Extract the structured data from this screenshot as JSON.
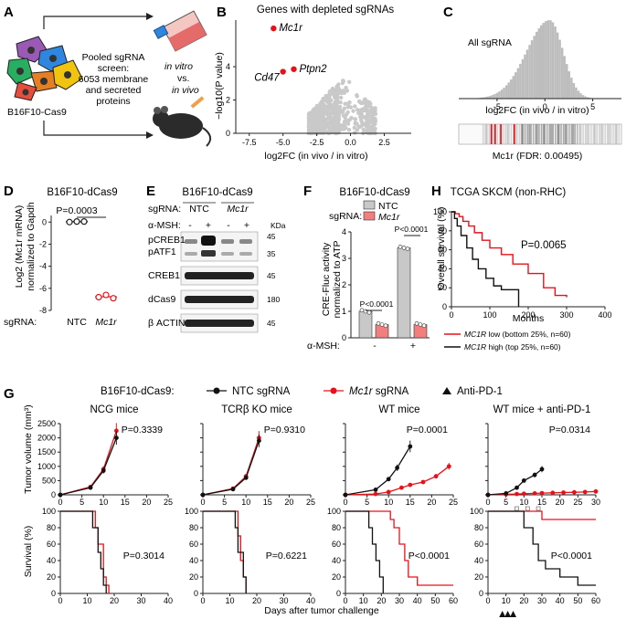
{
  "panels": {
    "A": "A",
    "B": "B",
    "C": "C",
    "D": "D",
    "E": "E",
    "F": "F",
    "G": "G",
    "H": "H"
  },
  "A": {
    "cell_line": "B16F10-Cas9",
    "screen_text": [
      "Pooled sgRNA",
      "screen:",
      "6053 membrane",
      "and secreted",
      "proteins"
    ],
    "in_vitro": "in vitro",
    "vs": "vs.",
    "in_vivo": "in vivo"
  },
  "B": {
    "title": "Genes with depleted sgRNAs",
    "xlabel": "log2FC (in vivo / in vitro)",
    "ylabel": "−log10(P value)",
    "xticks": [
      "-7.5",
      "-5.0",
      "-2.5",
      "0.0",
      "2.5"
    ],
    "yticks": [
      "0",
      "2",
      "4"
    ],
    "highlights": [
      {
        "gene": "Mc1r",
        "x": -5.7,
        "y": 6.3
      },
      {
        "gene": "Cd47",
        "x": -5.0,
        "y": 3.7
      },
      {
        "gene": "Ptpn2",
        "x": -4.2,
        "y": 3.85
      }
    ],
    "highlight_color": "#e8111a"
  },
  "C": {
    "hist_label": "All sgRNA",
    "xlabel": "log2FC (in vivo / in vitro)",
    "xticks": [
      "-5",
      "0",
      "5"
    ],
    "rug_label": "Mc1r (FDR: 0.00495)",
    "mc1r_sgrna_positions": [
      -5.6,
      -5.2,
      -4.6,
      -3.2
    ]
  },
  "D": {
    "title": "B16F10-dCas9",
    "ylabel_line1": "Log2 (Mc1r mRNA)",
    "ylabel_line2": "normalized to Gapdh",
    "pvalue": "P=0.0003",
    "yticks": [
      "0",
      "-2",
      "-4",
      "-6",
      "-8"
    ],
    "x_axis_caption": "sgRNA:",
    "groups": [
      {
        "label": "NTC",
        "points": [
          0.0,
          0.05,
          0.05
        ]
      },
      {
        "label": "Mc1r",
        "points": [
          -6.8,
          -6.6,
          -6.9
        ]
      }
    ]
  },
  "E": {
    "title": "B16F10-dCas9",
    "sgrna_caption": "sgRNA:",
    "groups": [
      "NTC",
      "Mc1r"
    ],
    "msh_caption": "α-MSH:",
    "msh_signs": [
      "-",
      "+",
      "-",
      "+"
    ],
    "kda_label": "KDa",
    "blots": [
      {
        "label_lines": [
          "pCREB1",
          "pATF1"
        ],
        "markers": [
          "45",
          "35"
        ]
      },
      {
        "label_lines": [
          "CREB1"
        ],
        "markers": [
          "45"
        ]
      },
      {
        "label_lines": [
          "dCas9"
        ],
        "markers": [
          "180"
        ]
      },
      {
        "label_lines": [
          "β ACTIN"
        ],
        "markers": [
          "45"
        ]
      }
    ]
  },
  "F": {
    "title": "B16F10-dCas9",
    "sgrna_caption": "sgRNA:",
    "legend": [
      {
        "name": "NTC",
        "color": "#c8c8c8"
      },
      {
        "name": "Mc1r",
        "color": "#f27e7e"
      }
    ],
    "ylabel_line1": "CRE-Fluc activity",
    "ylabel_line2": "normalized to ATP",
    "yticks": [
      "0",
      "1",
      "2",
      "3",
      "4"
    ],
    "msh_caption": "α-MSH:",
    "msh_groups": [
      "-",
      "+"
    ],
    "pvalues": [
      "P<0.0001",
      "P<0.0001"
    ],
    "bars": [
      {
        "group": "-",
        "sg": "NTC",
        "value": 1.0
      },
      {
        "group": "-",
        "sg": "Mc1r",
        "value": 0.5
      },
      {
        "group": "+",
        "sg": "NTC",
        "value": 3.4
      },
      {
        "group": "+",
        "sg": "Mc1r",
        "value": 0.5
      }
    ]
  },
  "H": {
    "title": "TCGA SKCM (non-RHC)",
    "ylabel": "Overall survival (%)",
    "xlabel": "Months",
    "pvalue": "P=0.0065",
    "xticks": [
      "0",
      "100",
      "200",
      "300",
      "400"
    ],
    "yticks": [
      "0",
      "20",
      "40",
      "60",
      "80",
      "100"
    ],
    "legend": [
      {
        "label_gene": "MC1R",
        "label_rest": " low (bottom 25%, n=60)",
        "color": "#e8111a"
      },
      {
        "label_gene": "MC1R",
        "label_rest": " high (top 25%, n=60)",
        "color": "#111111"
      }
    ],
    "curve_low": [
      [
        0,
        100
      ],
      [
        10,
        98
      ],
      [
        20,
        95
      ],
      [
        30,
        90
      ],
      [
        45,
        85
      ],
      [
        60,
        78
      ],
      [
        80,
        70
      ],
      [
        100,
        62
      ],
      [
        130,
        55
      ],
      [
        160,
        45
      ],
      [
        200,
        35
      ],
      [
        240,
        20
      ],
      [
        270,
        12
      ],
      [
        300,
        10
      ]
    ],
    "curve_high": [
      [
        0,
        100
      ],
      [
        8,
        93
      ],
      [
        15,
        85
      ],
      [
        25,
        75
      ],
      [
        40,
        62
      ],
      [
        55,
        50
      ],
      [
        70,
        40
      ],
      [
        90,
        30
      ],
      [
        110,
        22
      ],
      [
        130,
        18
      ],
      [
        150,
        18
      ],
      [
        175,
        0
      ]
    ]
  },
  "G": {
    "legend_prefix": "B16F10-dCas9:",
    "legend": [
      {
        "name_gene": "",
        "name_rest": "NTC sgRNA",
        "color": "#111111"
      },
      {
        "name_gene": "Mc1r",
        "name_rest": " sgRNA",
        "color": "#e8111a"
      },
      {
        "name_gene": "",
        "name_rest": "Anti-PD-1",
        "color": "#111111"
      }
    ],
    "ylabel_top": "Tumor volume (mm³)",
    "ylabel_bottom": "Survival (%)",
    "xlabel": "Days after tumor challenge",
    "top_yticks": [
      "0",
      "500",
      "1000",
      "1500",
      "2000",
      "2500"
    ],
    "surv_yticks": [
      "0",
      "20",
      "40",
      "60",
      "80",
      "100"
    ],
    "panels": [
      {
        "title": "NCG mice",
        "growth_xticks": [
          "0",
          "5",
          "10",
          "15",
          "20",
          "25"
        ],
        "growth_xmax": 25,
        "growth_p": "P=0.3339",
        "ntc_growth": [
          [
            0,
            0
          ],
          [
            7,
            250
          ],
          [
            10,
            850
          ],
          [
            13,
            2000
          ]
        ],
        "mc1r_growth": [
          [
            0,
            0
          ],
          [
            7,
            280
          ],
          [
            10,
            900
          ],
          [
            13,
            2250
          ]
        ],
        "surv_xticks": [
          "0",
          "10",
          "20",
          "30",
          "40"
        ],
        "surv_xmax": 40,
        "surv_p": "P=0.3014",
        "ntc_surv": [
          [
            0,
            100
          ],
          [
            12,
            100
          ],
          [
            12,
            80
          ],
          [
            14,
            80
          ],
          [
            14,
            50
          ],
          [
            15,
            50
          ],
          [
            15,
            30
          ],
          [
            16,
            30
          ],
          [
            16,
            10
          ],
          [
            17,
            10
          ],
          [
            17,
            0
          ]
        ],
        "mc1r_surv": [
          [
            0,
            100
          ],
          [
            13,
            100
          ],
          [
            13,
            80
          ],
          [
            14,
            80
          ],
          [
            14,
            60
          ],
          [
            16,
            60
          ],
          [
            16,
            20
          ],
          [
            17,
            20
          ],
          [
            17,
            10
          ],
          [
            18,
            10
          ],
          [
            18,
            0
          ]
        ]
      },
      {
        "title": "TCRβ KO mice",
        "growth_xticks": [
          "0",
          "5",
          "10",
          "15",
          "20",
          "25"
        ],
        "growth_xmax": 25,
        "growth_p": "P=0.9310",
        "ntc_growth": [
          [
            0,
            0
          ],
          [
            7,
            200
          ],
          [
            10,
            600
          ],
          [
            13,
            1900
          ]
        ],
        "mc1r_growth": [
          [
            0,
            0
          ],
          [
            7,
            220
          ],
          [
            10,
            650
          ],
          [
            13,
            2000
          ]
        ],
        "surv_xticks": [
          "0",
          "10",
          "20",
          "30",
          "40"
        ],
        "surv_xmax": 40,
        "surv_p": "P=0.6221",
        "ntc_surv": [
          [
            0,
            100
          ],
          [
            12,
            100
          ],
          [
            12,
            80
          ],
          [
            13,
            80
          ],
          [
            13,
            50
          ],
          [
            15,
            50
          ],
          [
            15,
            20
          ],
          [
            16,
            20
          ],
          [
            16,
            0
          ]
        ],
        "mc1r_surv": [
          [
            0,
            100
          ],
          [
            13,
            100
          ],
          [
            13,
            70
          ],
          [
            14,
            70
          ],
          [
            14,
            40
          ],
          [
            15,
            40
          ],
          [
            15,
            20
          ],
          [
            16,
            20
          ],
          [
            16,
            0
          ]
        ]
      },
      {
        "title": "WT mice",
        "growth_xticks": [
          "0",
          "5",
          "10",
          "15",
          "20",
          "25"
        ],
        "growth_xmax": 25,
        "growth_p": "P=0.0001",
        "ntc_growth": [
          [
            0,
            0
          ],
          [
            7,
            180
          ],
          [
            10,
            550
          ],
          [
            12,
            950
          ],
          [
            15,
            1700
          ]
        ],
        "mc1r_growth": [
          [
            0,
            0
          ],
          [
            7,
            30
          ],
          [
            10,
            100
          ],
          [
            13,
            250
          ],
          [
            15,
            350
          ],
          [
            18,
            450
          ],
          [
            21,
            650
          ],
          [
            24,
            1000
          ]
        ],
        "surv_xticks": [
          "0",
          "10",
          "20",
          "30",
          "40",
          "50",
          "60"
        ],
        "surv_xmax": 60,
        "surv_p": "P<0.0001",
        "ntc_surv": [
          [
            0,
            100
          ],
          [
            13,
            100
          ],
          [
            13,
            80
          ],
          [
            15,
            80
          ],
          [
            15,
            60
          ],
          [
            17,
            60
          ],
          [
            17,
            40
          ],
          [
            19,
            40
          ],
          [
            19,
            20
          ],
          [
            21,
            20
          ],
          [
            21,
            0
          ]
        ],
        "mc1r_surv": [
          [
            0,
            100
          ],
          [
            25,
            100
          ],
          [
            25,
            90
          ],
          [
            27,
            90
          ],
          [
            27,
            80
          ],
          [
            30,
            80
          ],
          [
            30,
            60
          ],
          [
            33,
            60
          ],
          [
            33,
            40
          ],
          [
            35,
            40
          ],
          [
            35,
            20
          ],
          [
            40,
            20
          ],
          [
            40,
            10
          ],
          [
            60,
            10
          ]
        ]
      },
      {
        "title": "WT mice + anti-PD-1",
        "growth_xticks": [
          "0",
          "5",
          "10",
          "15",
          "20",
          "25",
          "30"
        ],
        "growth_xmax": 30,
        "growth_p": "P=0.0314",
        "ntc_growth": [
          [
            0,
            0
          ],
          [
            5,
            50
          ],
          [
            8,
            250
          ],
          [
            10,
            500
          ],
          [
            13,
            700
          ],
          [
            15,
            900
          ]
        ],
        "mc1r_growth": [
          [
            0,
            0
          ],
          [
            5,
            20
          ],
          [
            8,
            30
          ],
          [
            10,
            40
          ],
          [
            13,
            50
          ],
          [
            15,
            60
          ],
          [
            18,
            70
          ],
          [
            21,
            80
          ],
          [
            24,
            90
          ],
          [
            27,
            100
          ],
          [
            30,
            120
          ]
        ],
        "surv_xticks": [
          "0",
          "10",
          "20",
          "30",
          "40",
          "50",
          "60"
        ],
        "surv_xmax": 60,
        "surv_p": "P<0.0001",
        "ntc_surv": [
          [
            0,
            100
          ],
          [
            20,
            100
          ],
          [
            20,
            80
          ],
          [
            25,
            80
          ],
          [
            25,
            60
          ],
          [
            28,
            60
          ],
          [
            28,
            40
          ],
          [
            32,
            40
          ],
          [
            32,
            30
          ],
          [
            40,
            30
          ],
          [
            40,
            20
          ],
          [
            50,
            20
          ],
          [
            50,
            10
          ],
          [
            60,
            10
          ]
        ],
        "mc1r_surv": [
          [
            0,
            100
          ],
          [
            30,
            100
          ],
          [
            30,
            90
          ],
          [
            60,
            90
          ]
        ],
        "pd1_days": [
          8,
          11,
          14
        ]
      }
    ]
  }
}
